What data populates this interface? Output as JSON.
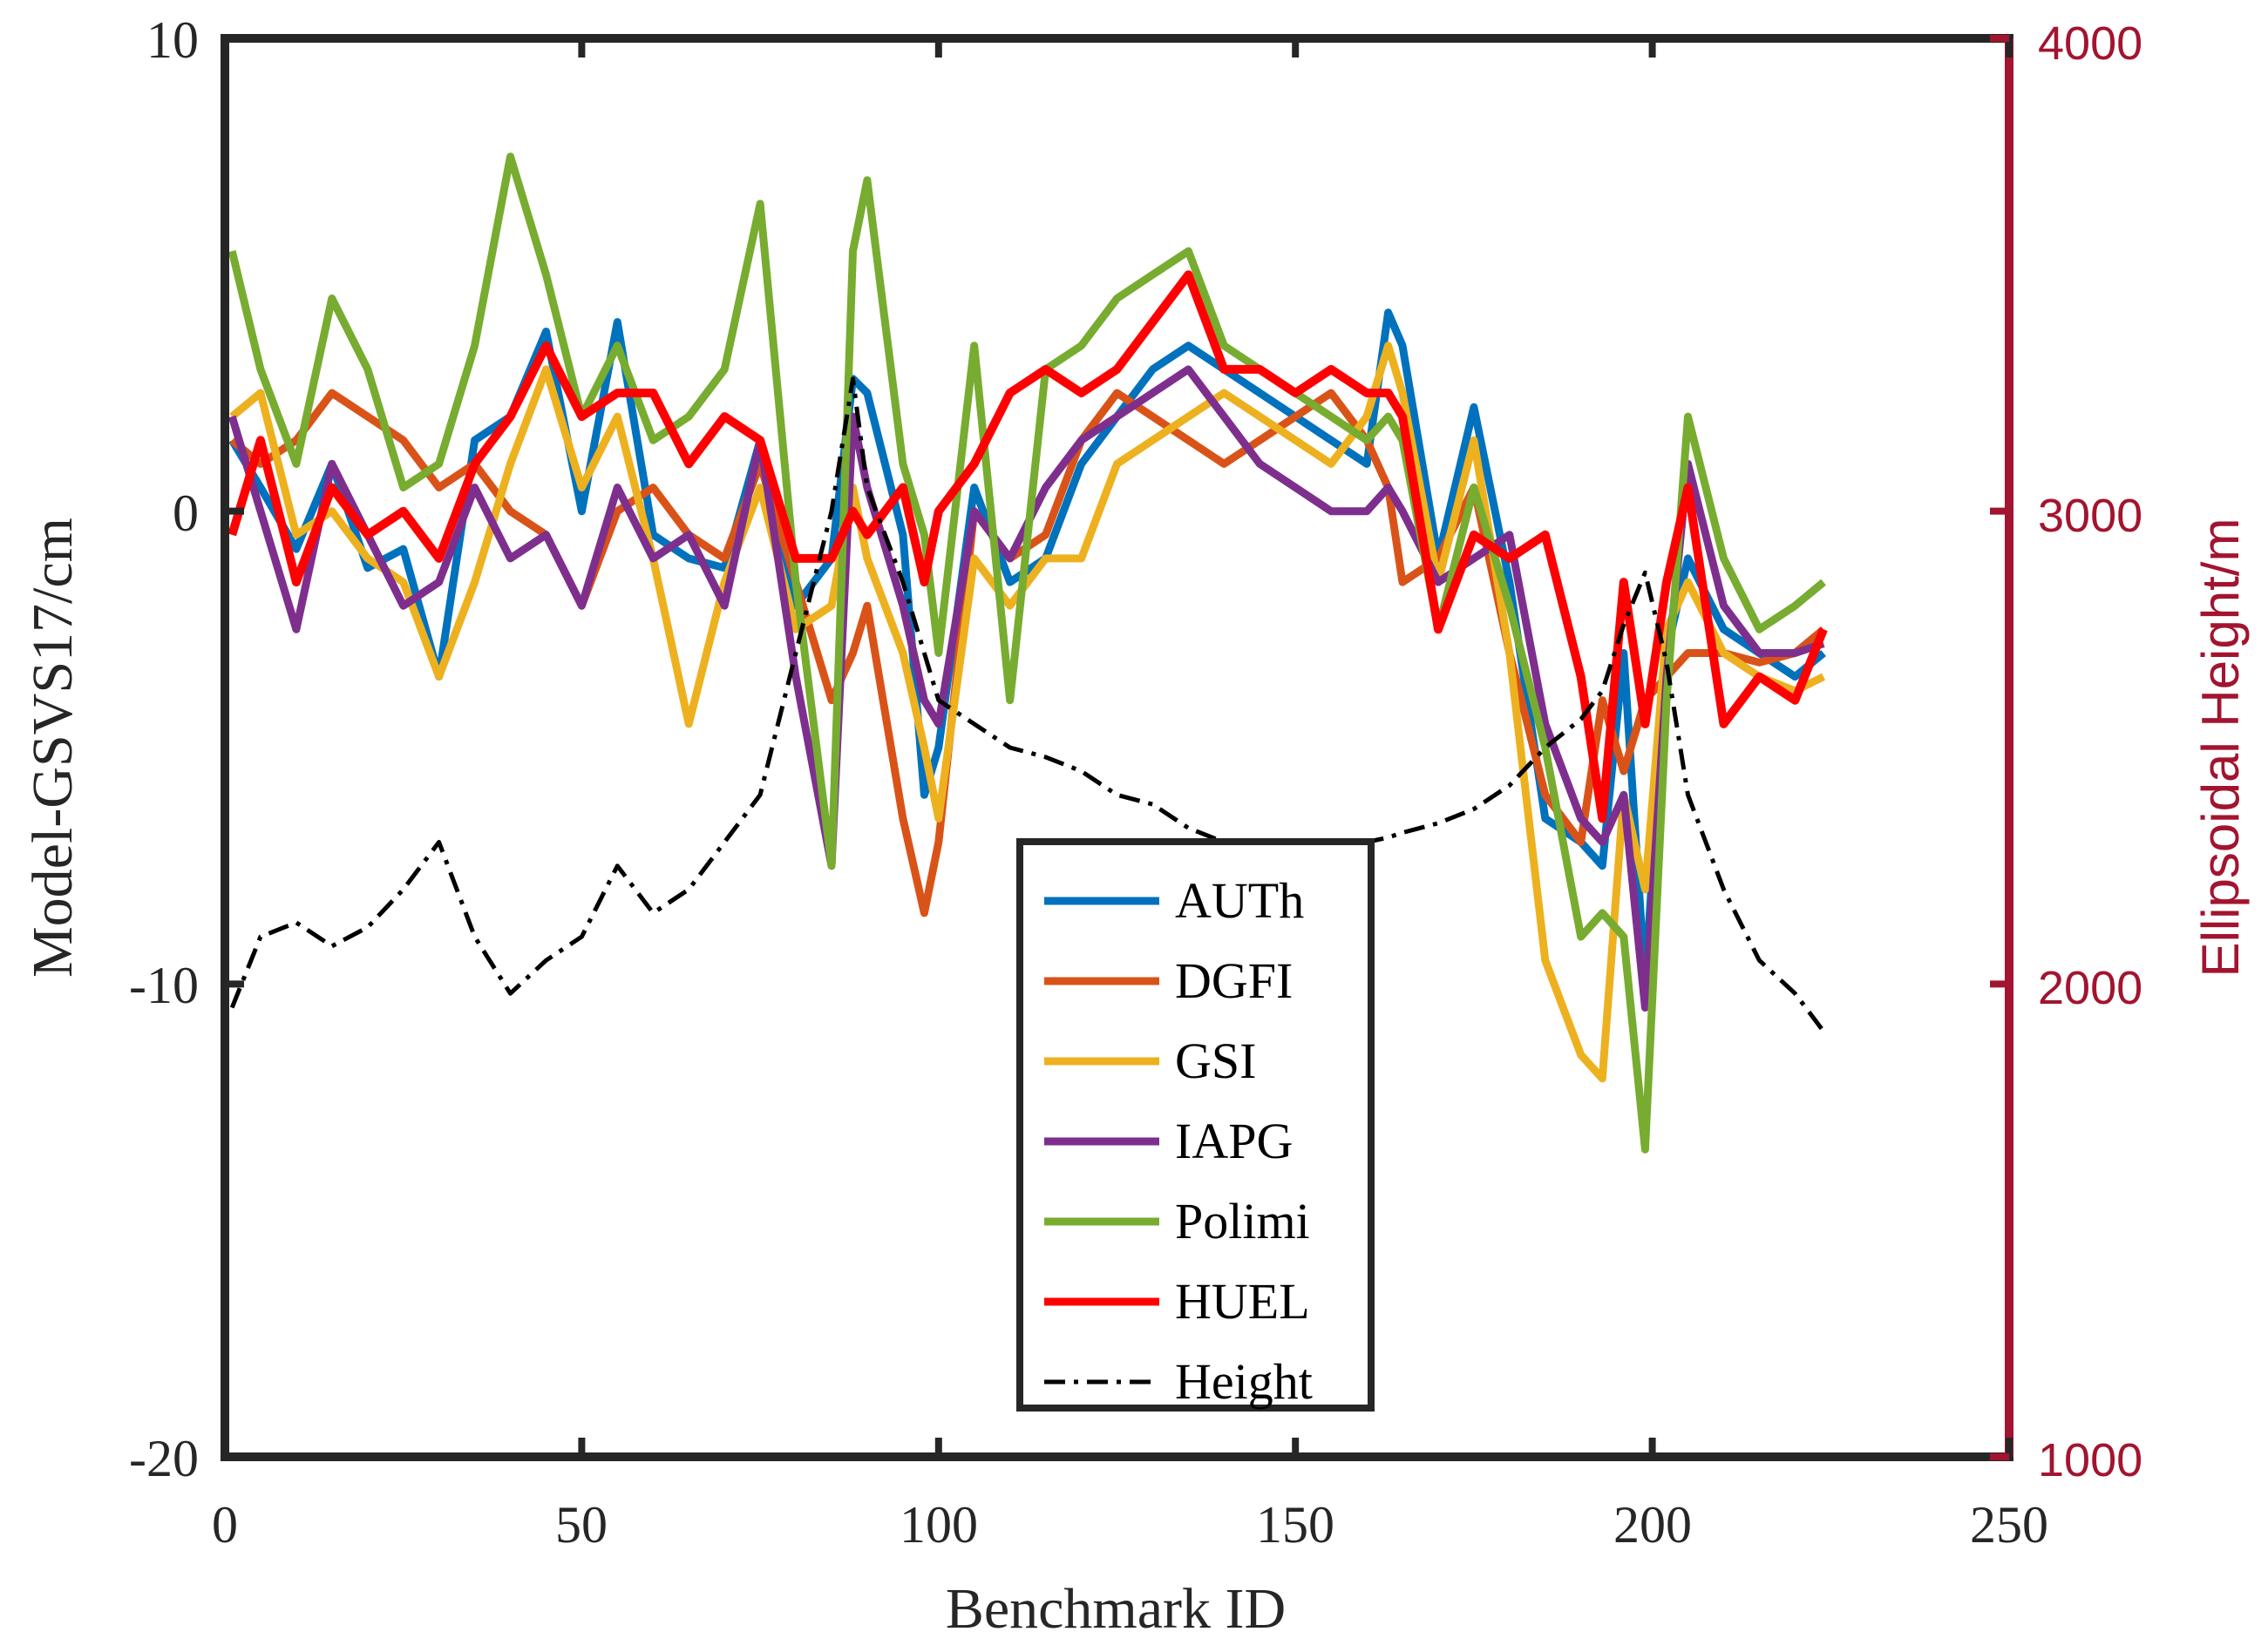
{
  "chart_data": {
    "type": "line",
    "title": "",
    "xlabel": "Benchmark ID",
    "ylabel_left": "Model-GSVS17/cm",
    "ylabel_right": "Ellipsoidal Height/m",
    "xlim": [
      0,
      250
    ],
    "ylim_left": [
      -20,
      10
    ],
    "ylim_right": [
      1000,
      4000
    ],
    "xticks": [
      "0",
      "50",
      "100",
      "150",
      "200",
      "250"
    ],
    "yticks_left": [
      "10",
      "0",
      "-10",
      "-20"
    ],
    "yticks_right": [
      "4000",
      "3000",
      "2000",
      "1000"
    ],
    "grid": false,
    "legend_position": "lower-center",
    "colors": {
      "AUTh": "#0072BD",
      "DGFI": "#D95319",
      "GSI": "#EDB120",
      "IAPG": "#7E2F8E",
      "Polimi": "#77AC30",
      "HUEL": "#FF0000",
      "Height": "#000000",
      "right_axis": "#A2142F"
    },
    "x": [
      1,
      5,
      10,
      15,
      20,
      25,
      30,
      35,
      40,
      45,
      50,
      55,
      60,
      65,
      70,
      75,
      80,
      85,
      88,
      90,
      95,
      98,
      100,
      105,
      110,
      115,
      120,
      125,
      130,
      135,
      140,
      145,
      150,
      155,
      160,
      163,
      165,
      170,
      175,
      180,
      185,
      190,
      193,
      196,
      199,
      202,
      205,
      210,
      215,
      220,
      224
    ],
    "series": [
      {
        "name": "AUTh",
        "axis": "left",
        "values": [
          1.5,
          0.5,
          -0.8,
          1.0,
          -1.2,
          -0.8,
          -3.5,
          1.5,
          2.0,
          3.8,
          0.0,
          4.0,
          -0.5,
          -1.0,
          -1.2,
          1.5,
          -2.0,
          -1.0,
          2.8,
          2.5,
          -0.5,
          -6.0,
          -5.0,
          0.5,
          -1.5,
          -1.0,
          1.0,
          2.0,
          3.0,
          3.5,
          3.0,
          2.5,
          2.0,
          1.5,
          1.0,
          4.2,
          3.5,
          -1.0,
          2.2,
          -1.5,
          -6.5,
          -7.0,
          -7.5,
          -3.0,
          -10.0,
          -3.0,
          -1.0,
          -2.5,
          -3.0,
          -3.5,
          -3.0
        ]
      },
      {
        "name": "DGFI",
        "axis": "left",
        "values": [
          1.5,
          1.0,
          1.5,
          2.5,
          2.0,
          1.5,
          0.5,
          1.0,
          0.0,
          -0.5,
          -2.0,
          0.0,
          0.5,
          -0.5,
          -1.0,
          1.0,
          -1.5,
          -4.0,
          -3.0,
          -2.0,
          -6.5,
          -8.5,
          -7.0,
          0.0,
          -1.0,
          -0.5,
          1.5,
          2.5,
          2.0,
          1.5,
          1.0,
          1.5,
          2.0,
          2.5,
          1.5,
          0.5,
          -1.5,
          -1.0,
          0.5,
          -3.0,
          -6.0,
          -7.0,
          -4.0,
          -5.5,
          -4.0,
          -3.5,
          -3.0,
          -3.0,
          -3.2,
          -3.0,
          -2.5
        ]
      },
      {
        "name": "GSI",
        "axis": "left",
        "values": [
          2.0,
          2.5,
          -0.5,
          0.0,
          -1.0,
          -1.5,
          -3.5,
          -1.5,
          1.0,
          3.0,
          0.5,
          2.0,
          -1.0,
          -4.5,
          -1.5,
          0.5,
          -2.5,
          -2.0,
          0.5,
          -1.0,
          -3.0,
          -5.0,
          -6.5,
          -1.0,
          -2.0,
          -1.0,
          -1.0,
          1.0,
          1.5,
          2.0,
          2.5,
          2.0,
          1.5,
          1.0,
          2.0,
          3.5,
          2.5,
          -1.5,
          1.5,
          -3.0,
          -9.5,
          -11.5,
          -12.0,
          -6.0,
          -8.0,
          -2.5,
          -1.5,
          -3.0,
          -3.5,
          -3.8,
          -3.5
        ]
      },
      {
        "name": "IAPG",
        "axis": "left",
        "values": [
          2.0,
          0.0,
          -2.5,
          1.0,
          -0.5,
          -2.0,
          -1.5,
          0.5,
          -1.0,
          -0.5,
          -2.0,
          0.5,
          -1.0,
          -0.5,
          -2.0,
          1.5,
          -3.5,
          -7.5,
          2.0,
          0.5,
          -2.0,
          -4.0,
          -4.5,
          0.0,
          -1.0,
          0.5,
          1.5,
          2.0,
          2.5,
          3.0,
          2.0,
          1.0,
          0.5,
          0.0,
          0.0,
          0.5,
          0.0,
          -1.5,
          -1.0,
          -0.5,
          -4.5,
          -6.5,
          -7.0,
          -6.0,
          -10.5,
          -3.5,
          1.0,
          -2.0,
          -3.0,
          -3.0,
          -2.8
        ]
      },
      {
        "name": "Polimi",
        "axis": "left",
        "values": [
          5.5,
          3.0,
          1.0,
          4.5,
          3.0,
          0.5,
          1.0,
          3.5,
          7.5,
          5.0,
          2.0,
          3.5,
          1.5,
          2.0,
          3.0,
          6.5,
          -1.5,
          -7.5,
          5.5,
          7.0,
          1.0,
          -0.5,
          -3.0,
          3.5,
          -4.0,
          3.0,
          3.5,
          4.5,
          5.0,
          5.5,
          3.5,
          3.0,
          2.5,
          2.0,
          1.5,
          2.0,
          1.5,
          -2.5,
          0.5,
          -2.0,
          -5.0,
          -9.0,
          -8.5,
          -9.0,
          -13.5,
          -4.0,
          2.0,
          -1.0,
          -2.5,
          -2.0,
          -1.5
        ]
      },
      {
        "name": "HUEL",
        "axis": "left",
        "values": [
          -0.5,
          1.5,
          -1.5,
          0.5,
          -0.5,
          0.0,
          -1.0,
          1.0,
          2.0,
          3.5,
          2.0,
          2.5,
          2.5,
          1.0,
          2.0,
          1.5,
          -1.0,
          -1.0,
          0.0,
          -0.5,
          0.5,
          -1.5,
          0.0,
          1.0,
          2.5,
          3.0,
          2.5,
          3.0,
          4.0,
          5.0,
          3.0,
          3.0,
          2.5,
          3.0,
          2.5,
          2.5,
          2.0,
          -2.5,
          -0.5,
          -1.0,
          -0.5,
          -3.5,
          -6.5,
          -1.5,
          -4.5,
          -1.5,
          0.5,
          -4.5,
          -3.5,
          -4.0,
          -2.5
        ]
      },
      {
        "name": "Height",
        "axis": "right",
        "values": [
          1950,
          2100,
          2130,
          2080,
          2120,
          2200,
          2300,
          2100,
          1980,
          2050,
          2100,
          2250,
          2150,
          2200,
          2300,
          2400,
          2700,
          3000,
          3280,
          3050,
          2850,
          2700,
          2600,
          2550,
          2500,
          2480,
          2450,
          2400,
          2380,
          2330,
          2300,
          2290,
          2280,
          2280,
          2300,
          2310,
          2320,
          2340,
          2370,
          2420,
          2500,
          2560,
          2620,
          2760,
          2870,
          2680,
          2400,
          2200,
          2050,
          1980,
          1900
        ]
      }
    ]
  }
}
